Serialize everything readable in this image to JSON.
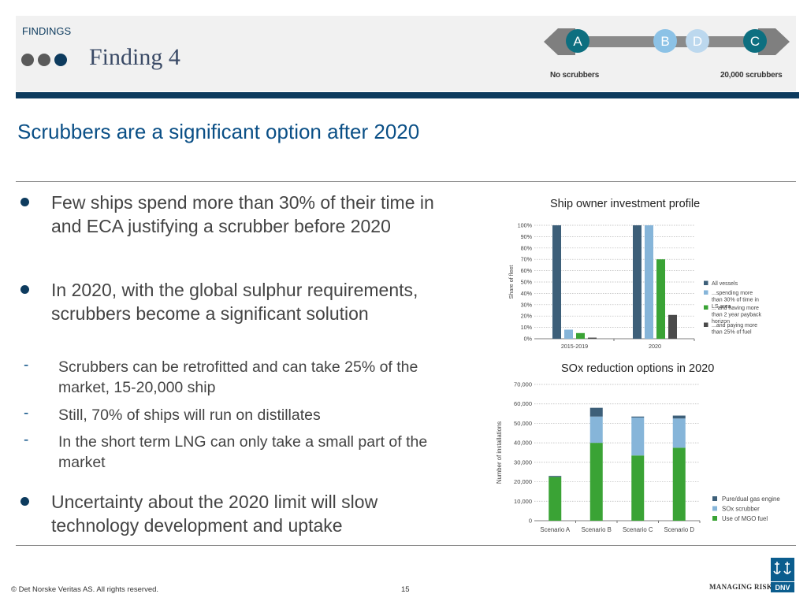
{
  "header": {
    "section_label": "FINDINGS",
    "title": "Finding 4",
    "scenario_letters": [
      "A",
      "B",
      "D",
      "C"
    ],
    "scenario_left_label": "No scrubbers",
    "scenario_right_label": "20,000 scrubbers"
  },
  "subtitle": "Scrubbers are a significant option after 2020",
  "bullets": [
    {
      "text": "Few ships spend more than 30% of their time in and ECA justifying a scrubber before 2020"
    },
    {
      "text": "In 2020, with the global sulphur requirements, scrubbers become a significant solution"
    },
    {
      "text": "Uncertainty about the 2020 limit will slow technology development and uptake"
    }
  ],
  "sub_bullets": [
    {
      "text": "Scrubbers can be retrofitted and can take 25% of the market, 15-20,000 ship"
    },
    {
      "text": "Still, 70% of ships will run on distillates"
    },
    {
      "text": "In the short term LNG can only take a small part of the market"
    }
  ],
  "footer": {
    "copyright": "© Det Norske Veritas AS. All rights reserved.",
    "page_number": "15",
    "tagline": "MANAGING RISK",
    "logo_text": "DNV"
  },
  "colors": {
    "navy": "#0d3b5e",
    "series_all": "#3d5f79",
    "series_30pct": "#86b5d9",
    "series_payback": "#3aa335",
    "series_fuel": "#4a4a4a",
    "scenario_dark": "#0d6f80",
    "scenario_light": "#8cc2e6"
  },
  "chart_data": [
    {
      "type": "bar",
      "title": "Ship owner investment profile",
      "ylabel": "Share of fleet",
      "xlabel": "",
      "ylim": [
        0,
        100
      ],
      "yticks": [
        0,
        10,
        20,
        30,
        40,
        50,
        60,
        70,
        80,
        90,
        100
      ],
      "ytick_suffix": "%",
      "categories": [
        "2015-2019",
        "2020"
      ],
      "series": [
        {
          "name": "All vessels",
          "values": [
            100,
            100
          ]
        },
        {
          "name": "...spending more than 30% of time in LS area",
          "values": [
            8,
            100
          ]
        },
        {
          "name": "... and having more than 2 year payback horizon",
          "values": [
            5,
            70
          ]
        },
        {
          "name": "...and paying more than 25% of fuel",
          "values": [
            1,
            21
          ]
        }
      ],
      "grid": true,
      "legend": "right"
    },
    {
      "type": "bar",
      "stacked": true,
      "title": "SOx reduction options in 2020",
      "ylabel": "Number of installations",
      "xlabel": "",
      "ylim": [
        0,
        70000
      ],
      "yticks": [
        0,
        10000,
        20000,
        30000,
        40000,
        50000,
        60000,
        70000
      ],
      "ytick_labels": [
        "0",
        "10,000",
        "20,000",
        "30,000",
        "40,000",
        "50,000",
        "60,000",
        "70,000"
      ],
      "categories": [
        "Scenario A",
        "Scenario B",
        "Scenario C",
        "Scenario D"
      ],
      "series": [
        {
          "name": "Use of MGO fuel",
          "values": [
            22500,
            40000,
            33500,
            37500
          ]
        },
        {
          "name": "SOx scrubber",
          "values": [
            0,
            13500,
            19500,
            15000
          ]
        },
        {
          "name": "Pure/dual gas engine",
          "values": [
            500,
            4500,
            500,
            1500
          ]
        }
      ],
      "legend_order": [
        "Pure/dual gas engine",
        "SOx scrubber",
        "Use of MGO fuel"
      ],
      "grid": true,
      "legend": "right"
    }
  ]
}
